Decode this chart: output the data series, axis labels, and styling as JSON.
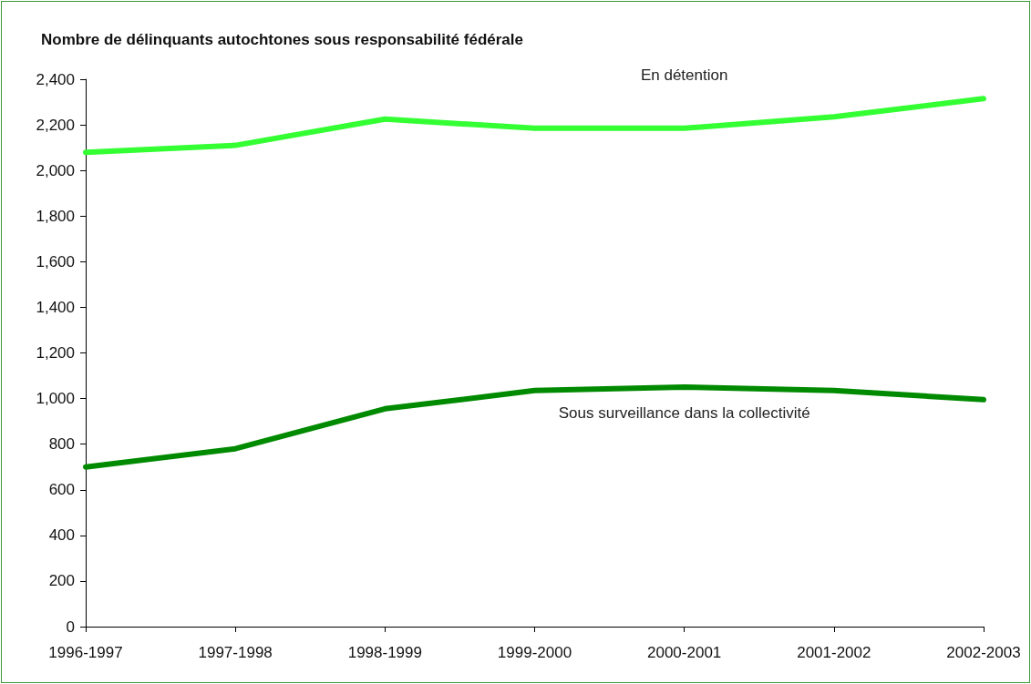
{
  "chart_data": {
    "type": "line",
    "title": "Nombre de délinquants autochtones sous responsabilité fédérale",
    "categories": [
      "1996-1997",
      "1997-1998",
      "1998-1999",
      "1999-2000",
      "2000-2001",
      "2001-2002",
      "2002-2003"
    ],
    "series": [
      {
        "name": "En détention",
        "color": "#33ff33",
        "values": [
          2080,
          2110,
          2225,
          2185,
          2185,
          2235,
          2315
        ]
      },
      {
        "name": "Sous surveillance dans la collectivité",
        "color": "#008a00",
        "values": [
          700,
          780,
          955,
          1035,
          1050,
          1035,
          995
        ]
      }
    ],
    "ylim": [
      0,
      2400
    ],
    "yticks": [
      0,
      200,
      400,
      600,
      800,
      {
        "value": 1000,
        "label": "1,000"
      },
      {
        "value": 1200,
        "label": "1,200"
      },
      {
        "value": 1400,
        "label": "1,400"
      },
      {
        "value": 1600,
        "label": "1,600"
      },
      {
        "value": 1800,
        "label": "1,800"
      },
      {
        "value": 2000,
        "label": "2,000"
      },
      {
        "value": 2200,
        "label": "2,200"
      },
      {
        "value": 2400,
        "label": "2,400"
      }
    ],
    "grid": false,
    "legend": false,
    "marker": "none",
    "line_style": "solid"
  }
}
